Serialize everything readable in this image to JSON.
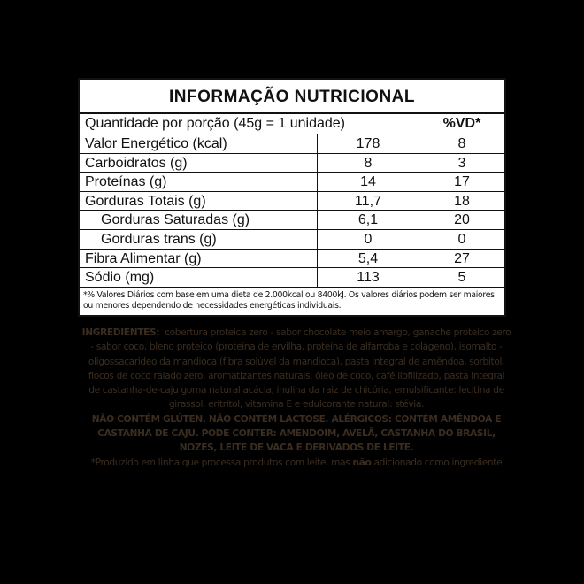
{
  "title": "INFORMAÇÃO NUTRICIONAL",
  "header": {
    "portion": "Quantidade por porção (45g = 1 unidade)",
    "vd": "%VD*"
  },
  "rows": [
    {
      "name": "Valor Energético (kcal)",
      "amount": "178",
      "vd": "8"
    },
    {
      "name": "Carboidratos (g)",
      "amount": "8",
      "vd": "3"
    },
    {
      "name": "Proteínas (g)",
      "amount": "14",
      "vd": "17"
    },
    {
      "name": "Gorduras Totais (g)",
      "amount": "11,7",
      "vd": "18"
    },
    {
      "name": "Gorduras Saturadas (g)",
      "amount": "6,1",
      "vd": "20"
    },
    {
      "name": "Gorduras trans (g)",
      "amount": "0",
      "vd": "0"
    },
    {
      "name": "Fibra Alimentar (g)",
      "amount": "5,4",
      "vd": "27"
    },
    {
      "name": "Sódio (mg)",
      "amount": "113",
      "vd": "5"
    }
  ],
  "footnote": "*% Valores Diários com base em uma dieta de 2.000kcal ou 8400kJ. Os valores diários podem ser maiores ou menores dependendo  de necessidades energéticas individuais.",
  "ingredients": {
    "label": "INGREDIENTES:",
    "text": "cobertura proteica zero - sabor chocolate meio amargo, ganache proteico zero - sabor coco, blend proteico (proteina de ervilha, proteína de alfarroba e colágeno), isomalto - oligossacarideo da mandioca (fibra solúvel da mandioca), pasta integral de amêndoa, sorbitol, flocos de coco ralado zero, aromatizantes naturais, óleo de coco, café liofilizado, pasta integral de castanha-de-caju goma natural acácia, inulina da raiz de chicória, emulsificante: lecitina de girassol, eritritol, vitamina E e edulcorante natural: stévia.",
    "allergens": "NÃO CONTÉM GLÚTEN. NÃO CONTÉM LACTOSE. ALÉRGICOS: CONTÉM AMÊNDOA E CASTANHA DE CAJU. PODE CONTER: AMENDOIM, AVELÃ, CASTANHA DO BRASIL, NOZES, LEITE DE VACA E DERIVADOS DE LEITE.",
    "note_pre": "*Produzido em linha que processa produtos com leite, mas",
    "note_bold": "não",
    "note_post": "adicionado como ingrediente"
  },
  "colors": {
    "background": "#000000",
    "label_bg": "#ffffff",
    "ingredients_text": "#3b2d20"
  }
}
